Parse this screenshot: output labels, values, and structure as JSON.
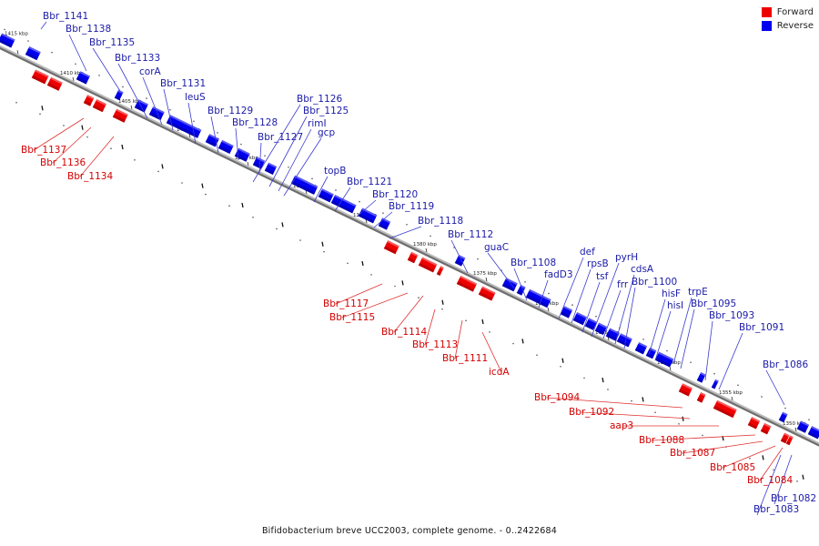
{
  "legend": {
    "forward_label": "Forward",
    "reverse_label": "Reverse",
    "forward_color": "#ee0000",
    "reverse_color": "#0000ee"
  },
  "caption": "Bifidobacterium breve UCC2003, complete genome. - 0..2422684",
  "ticks": [
    "1415 kbp",
    "1410 kbp",
    "1405 kbp",
    "1400 kbp",
    "1395 kbp",
    "1390 kbp",
    "1385 kbp",
    "1380 kbp",
    "1375 kbp",
    "1370 kbp",
    "1365 kbp",
    "1360 kbp",
    "1355 kbp",
    "1350 kbp"
  ],
  "genes_reverse": [
    "Bbr_1141",
    "Bbr_1138",
    "Bbr_1135",
    "Bbr_1133",
    "corA",
    "Bbr_1131",
    "leuS",
    "Bbr_1129",
    "Bbr_1128",
    "Bbr_1127",
    "Bbr_1126",
    "Bbr_1125",
    "rimI",
    "gcp",
    "topB",
    "Bbr_1121",
    "Bbr_1120",
    "Bbr_1119",
    "Bbr_1118",
    "Bbr_1112",
    "guaC",
    "Bbr_1108",
    "fadD3",
    "def",
    "rpsB",
    "tsf",
    "pyrH",
    "frr",
    "cdsA",
    "Bbr_1100",
    "hisF",
    "hisI",
    "trpE",
    "Bbr_1095",
    "Bbr_1093",
    "Bbr_1091",
    "Bbr_1086",
    "Bbr_1082",
    "Bbr_1083"
  ],
  "genes_forward": [
    "Bbr_1137",
    "Bbr_1136",
    "Bbr_1134",
    "Bbr_1117",
    "Bbr_1115",
    "Bbr_1114",
    "Bbr_1113",
    "Bbr_1111",
    "icdA",
    "Bbr_1094",
    "Bbr_1092",
    "aap3",
    "Bbr_1088",
    "Bbr_1087",
    "Bbr_1085",
    "Bbr_1084"
  ]
}
